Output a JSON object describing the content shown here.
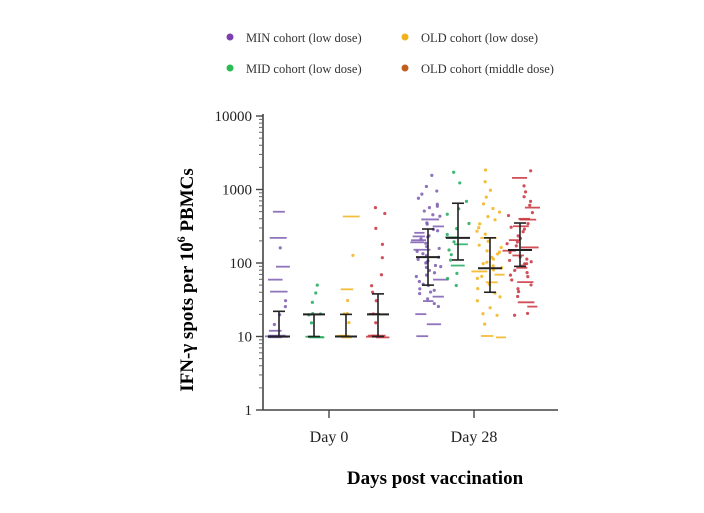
{
  "chart_data": {
    "type": "scatter",
    "title": "",
    "xlabel": "Days post vaccination",
    "ylabel_parts": {
      "before": "IFN-γ spots per 10",
      "sup": "6",
      "after": " PBMCs"
    },
    "yscale": "log",
    "ylim": [
      1,
      10000
    ],
    "yticks": [
      {
        "value": 1,
        "label": "1"
      },
      {
        "value": 10,
        "label": "10"
      },
      {
        "value": 100,
        "label": "100"
      },
      {
        "value": 1000,
        "label": "1000"
      },
      {
        "value": 10000,
        "label": "10000"
      }
    ],
    "categories": [
      "Day 0",
      "Day 28"
    ],
    "legend_position": "top",
    "series": [
      {
        "name": "MIN cohort (low dose)",
        "color": "#7b5bb0",
        "day0": {
          "median": 10,
          "q1": 10,
          "q3": 22,
          "points": [
            500,
            220,
            160,
            90,
            60,
            40,
            30,
            25,
            20,
            15,
            12,
            10,
            10,
            10,
            10,
            10,
            10,
            10
          ]
        },
        "day28": {
          "median": 120,
          "q1": 50,
          "q3": 290,
          "points": [
            1600,
            1100,
            950,
            850,
            750,
            650,
            600,
            550,
            500,
            460,
            420,
            390,
            360,
            330,
            310,
            290,
            270,
            250,
            240,
            230,
            220,
            210,
            200,
            190,
            180,
            170,
            160,
            150,
            140,
            130,
            125,
            120,
            115,
            110,
            105,
            100,
            95,
            90,
            85,
            80,
            75,
            70,
            65,
            60,
            55,
            50,
            48,
            45,
            42,
            40,
            38,
            35,
            32,
            30,
            28,
            25,
            20,
            15,
            10
          ]
        }
      },
      {
        "name": "MID cohort (low dose)",
        "color": "#1faa5c",
        "day0": {
          "median": 20,
          "q1": 10,
          "q3": 20,
          "points": [
            50,
            40,
            30,
            20,
            20,
            20,
            15,
            10,
            10,
            10
          ]
        },
        "day28": {
          "median": 220,
          "q1": 110,
          "q3": 650,
          "points": [
            1700,
            1200,
            700,
            550,
            450,
            350,
            300,
            250,
            220,
            200,
            180,
            150,
            130,
            110,
            90,
            70,
            60,
            50
          ]
        }
      },
      {
        "name": "OLD cohort (low dose)",
        "color": "#f2b21a",
        "day0": {
          "median": 10,
          "q1": 10,
          "q3": 20,
          "points": [
            420,
            130,
            45,
            30,
            20,
            20,
            15,
            10,
            10,
            10,
            10,
            10
          ]
        },
        "day28": {
          "median": 85,
          "q1": 40,
          "q3": 220,
          "points": [
            1800,
            1300,
            1000,
            800,
            650,
            550,
            480,
            420,
            380,
            340,
            300,
            270,
            240,
            220,
            200,
            180,
            160,
            150,
            140,
            130,
            120,
            110,
            100,
            95,
            90,
            85,
            80,
            75,
            70,
            65,
            60,
            55,
            50,
            45,
            40,
            35,
            30,
            25,
            20,
            20,
            15,
            10,
            10
          ]
        }
      },
      {
        "name": "OLD cohort (middle dose)",
        "color": "#c8323c",
        "day0": {
          "median": 20,
          "q1": 10,
          "q3": 38,
          "points": [
            560,
            480,
            300,
            180,
            120,
            70,
            50,
            40,
            30,
            20,
            20,
            15,
            10,
            10,
            10,
            10,
            10
          ]
        },
        "day28": {
          "median": 150,
          "q1": 90,
          "q3": 350,
          "points": [
            1800,
            1400,
            1100,
            950,
            800,
            700,
            620,
            550,
            500,
            450,
            410,
            380,
            350,
            320,
            300,
            280,
            260,
            240,
            220,
            200,
            190,
            180,
            170,
            160,
            150,
            140,
            130,
            120,
            115,
            110,
            105,
            100,
            95,
            90,
            85,
            80,
            75,
            70,
            65,
            60,
            55,
            50,
            45,
            40,
            35,
            30,
            25,
            20,
            20
          ]
        }
      }
    ],
    "legend_dot_colors": [
      "#7b3fb0",
      "#2bbb55",
      "#f2b21a",
      "#c0601f"
    ]
  }
}
